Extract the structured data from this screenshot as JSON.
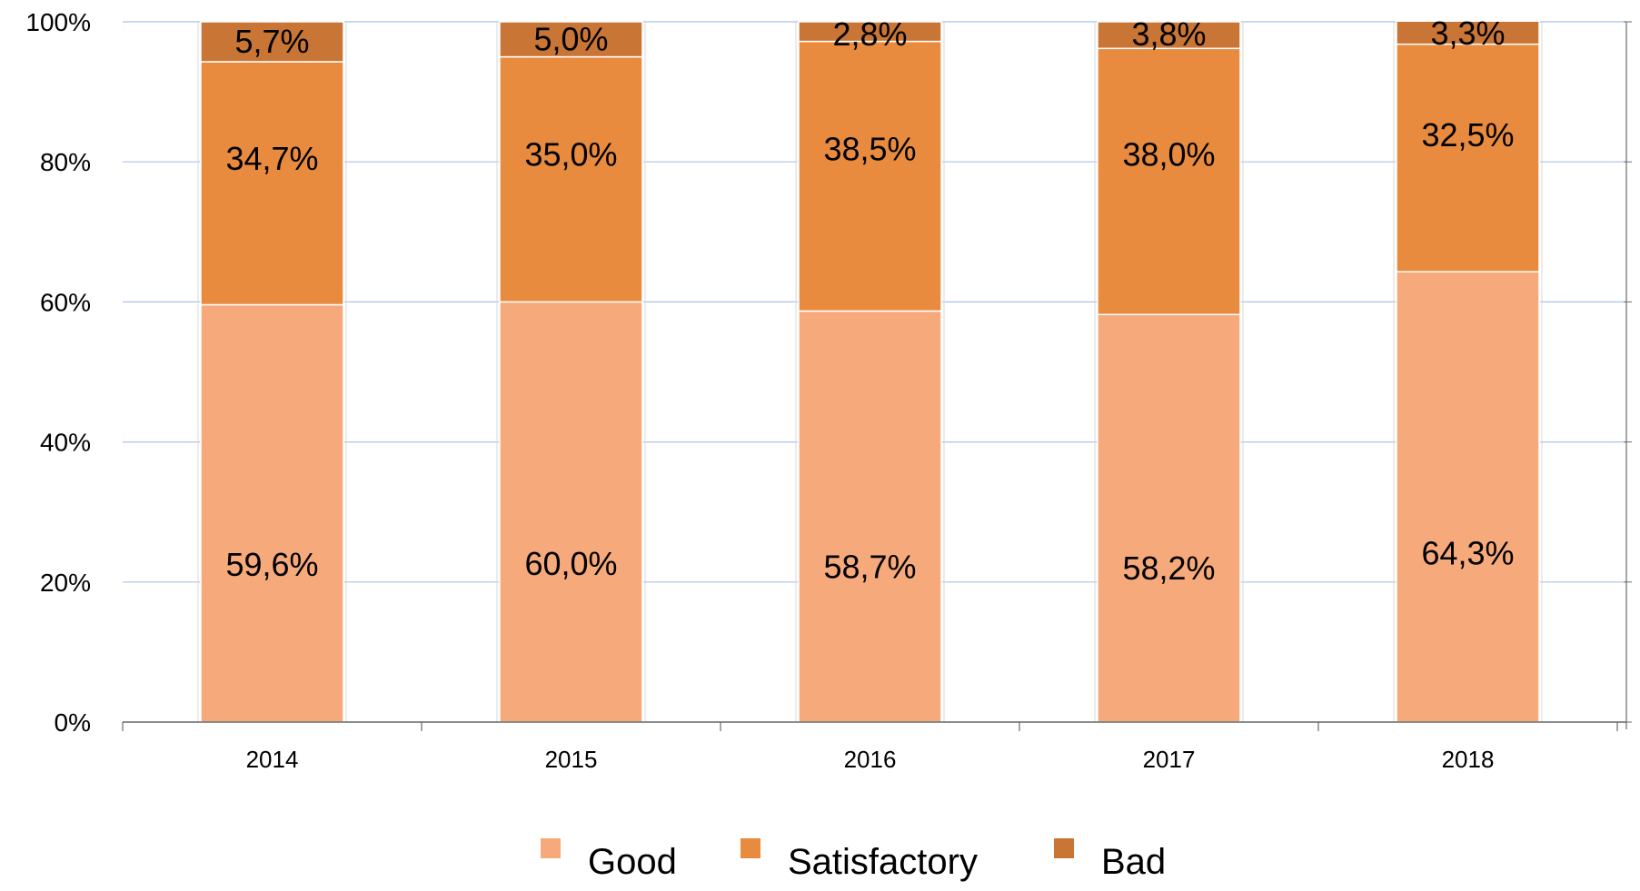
{
  "chart_data": {
    "type": "bar",
    "stacked": true,
    "percent": true,
    "categories": [
      "2014",
      "2015",
      "2016",
      "2017",
      "2018"
    ],
    "series": [
      {
        "name": "Good",
        "color": "#F6A97A",
        "values": [
          59.6,
          60.0,
          58.7,
          58.2,
          64.3
        ],
        "labels": [
          "59,6%",
          "60,0%",
          "58,7%",
          "58,2%",
          "64,3%"
        ]
      },
      {
        "name": "Satisfactory",
        "color": "#E88B3F",
        "values": [
          34.7,
          35.0,
          38.5,
          38.0,
          32.5
        ],
        "labels": [
          "34,7%",
          "35,0%",
          "38,5%",
          "38,0%",
          "32,5%"
        ]
      },
      {
        "name": "Bad",
        "color": "#C87535",
        "values": [
          5.7,
          5.0,
          2.8,
          3.8,
          3.3
        ],
        "labels": [
          "5,7%",
          "5,0%",
          "2,8%",
          "3,8%",
          "3,3%"
        ]
      }
    ],
    "yticks": [
      "0%",
      "20%",
      "40%",
      "60%",
      "80%",
      "100%"
    ],
    "ylim": [
      0,
      100
    ],
    "grid": true,
    "legend_position": "bottom",
    "title": "",
    "xlabel": "",
    "ylabel": ""
  }
}
